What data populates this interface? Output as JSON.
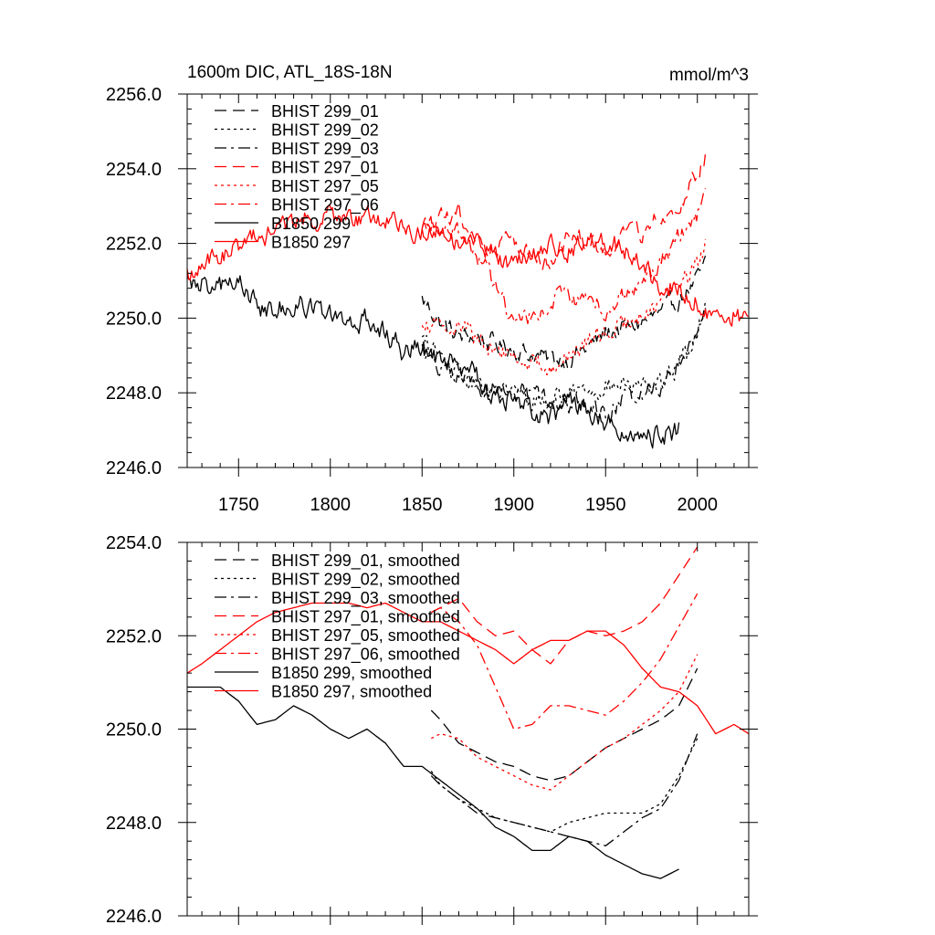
{
  "colors": {
    "black": "#000000",
    "red": "#ff0000"
  },
  "chart_data": [
    {
      "type": "line",
      "title": "1600m DIC, ATL_18S-18N",
      "units": "mmol/m^3",
      "xlabel": "",
      "ylabel": "",
      "xlim": [
        1722,
        2028
      ],
      "ylim": [
        2246.0,
        2256.0
      ],
      "xticks": [
        1750,
        1800,
        1850,
        1900,
        1950,
        2000
      ],
      "yticks": [
        "2246.0",
        "2248.0",
        "2250.0",
        "2252.0",
        "2254.0",
        "2256.0"
      ],
      "series": [
        {
          "name": "BHIST 299_01",
          "color": "#000000",
          "dash": "dash",
          "noise": 0.22,
          "x": [
            1850,
            1860,
            1870,
            1880,
            1890,
            1900,
            1910,
            1920,
            1930,
            1940,
            1950,
            1960,
            1970,
            1980,
            1990,
            2000,
            2005
          ],
          "y": [
            2250.5,
            2249.9,
            2249.5,
            2249.5,
            2249.3,
            2249.2,
            2249.0,
            2248.9,
            2248.9,
            2249.2,
            2249.6,
            2249.7,
            2249.9,
            2250.1,
            2250.5,
            2251.0,
            2251.5
          ]
        },
        {
          "name": "BHIST 299_02",
          "color": "#000000",
          "dash": "dot",
          "noise": 0.22,
          "x": [
            1850,
            1860,
            1870,
            1880,
            1890,
            1900,
            1910,
            1920,
            1930,
            1940,
            1950,
            1960,
            1970,
            1980,
            1990,
            2000,
            2005
          ],
          "y": [
            2249.4,
            2249.0,
            2248.4,
            2248.2,
            2248.0,
            2248.0,
            2247.8,
            2247.8,
            2248.0,
            2248.1,
            2248.2,
            2248.2,
            2248.1,
            2248.2,
            2248.9,
            2249.6,
            2250.3
          ]
        },
        {
          "name": "BHIST 299_03",
          "color": "#000000",
          "dash": "dashdot",
          "noise": 0.22,
          "x": [
            1850,
            1860,
            1870,
            1880,
            1890,
            1900,
            1910,
            1920,
            1930,
            1940,
            1950,
            1960,
            1970,
            1980,
            1990,
            2000,
            2005
          ],
          "y": [
            2249.2,
            2248.7,
            2248.4,
            2248.2,
            2248.1,
            2248.0,
            2247.9,
            2247.7,
            2247.7,
            2247.6,
            2247.5,
            2247.8,
            2248.0,
            2248.2,
            2248.8,
            2249.7,
            2250.4
          ]
        },
        {
          "name": "BHIST 297_01",
          "color": "#ff0000",
          "dash": "dash",
          "noise": 0.22,
          "x": [
            1850,
            1860,
            1870,
            1880,
            1890,
            1900,
            1910,
            1920,
            1930,
            1940,
            1950,
            1960,
            1970,
            1980,
            1990,
            2000,
            2005
          ],
          "y": [
            2252.3,
            2252.6,
            2252.8,
            2252.1,
            2251.9,
            2252.1,
            2251.8,
            2251.5,
            2252.1,
            2252.1,
            2251.9,
            2252.1,
            2252.3,
            2252.7,
            2253.1,
            2253.8,
            2254.5
          ]
        },
        {
          "name": "BHIST 297_05",
          "color": "#ff0000",
          "dash": "dot",
          "noise": 0.22,
          "x": [
            1850,
            1860,
            1870,
            1880,
            1890,
            1900,
            1910,
            1920,
            1930,
            1940,
            1950,
            1960,
            1970,
            1980,
            1990,
            2000,
            2005
          ],
          "y": [
            2249.7,
            2250.0,
            2249.8,
            2249.4,
            2249.2,
            2249.0,
            2248.8,
            2248.7,
            2249.0,
            2249.3,
            2249.6,
            2249.8,
            2250.1,
            2250.4,
            2250.8,
            2251.4,
            2252.1
          ]
        },
        {
          "name": "BHIST 297_06",
          "color": "#ff0000",
          "dash": "dashdot",
          "noise": 0.22,
          "x": [
            1850,
            1860,
            1870,
            1880,
            1890,
            1900,
            1910,
            1920,
            1930,
            1940,
            1950,
            1960,
            1970,
            1980,
            1990,
            2000,
            2005
          ],
          "y": [
            2252.3,
            2252.6,
            2252.3,
            2251.7,
            2250.9,
            2249.9,
            2250.1,
            2250.5,
            2250.6,
            2250.5,
            2250.3,
            2250.6,
            2250.9,
            2251.5,
            2252.1,
            2252.8,
            2253.2
          ]
        },
        {
          "name": "B1850 299",
          "color": "#000000",
          "dash": "solid",
          "noise": 0.26,
          "x": [
            1722,
            1730,
            1740,
            1750,
            1760,
            1770,
            1780,
            1790,
            1800,
            1810,
            1820,
            1830,
            1840,
            1850,
            1860,
            1870,
            1880,
            1890,
            1900,
            1910,
            1920,
            1930,
            1940,
            1950,
            1960,
            1970,
            1980,
            1990
          ],
          "y": [
            2251.0,
            2250.9,
            2250.9,
            2250.9,
            2250.3,
            2250.1,
            2250.5,
            2250.4,
            2250.1,
            2249.8,
            2250.0,
            2249.6,
            2249.1,
            2249.2,
            2248.9,
            2248.7,
            2248.4,
            2248.0,
            2247.8,
            2247.4,
            2247.4,
            2247.7,
            2247.6,
            2247.3,
            2247.1,
            2246.9,
            2246.8,
            2247.0
          ]
        },
        {
          "name": "B1850 297",
          "color": "#ff0000",
          "dash": "solid",
          "noise": 0.24,
          "x": [
            1722,
            1730,
            1740,
            1750,
            1760,
            1770,
            1780,
            1790,
            1800,
            1810,
            1820,
            1830,
            1840,
            1850,
            1860,
            1870,
            1880,
            1890,
            1900,
            1910,
            1920,
            1930,
            1940,
            1950,
            1960,
            1970,
            1980,
            1990,
            2000,
            2010,
            2020,
            2028
          ],
          "y": [
            2251.2,
            2251.4,
            2251.7,
            2251.9,
            2252.2,
            2252.4,
            2252.6,
            2252.7,
            2252.7,
            2252.7,
            2252.6,
            2252.7,
            2252.5,
            2252.3,
            2252.3,
            2252.1,
            2251.9,
            2251.7,
            2251.4,
            2251.7,
            2251.9,
            2251.8,
            2252.1,
            2252.1,
            2251.9,
            2251.3,
            2250.9,
            2250.8,
            2250.5,
            2250.0,
            2250.1,
            2249.9
          ]
        }
      ]
    },
    {
      "type": "line",
      "title": "",
      "xlabel": "",
      "ylabel": "",
      "xlim": [
        1722,
        2028
      ],
      "ylim": [
        2246.0,
        2254.0
      ],
      "xticks": [
        1750,
        1800,
        1850,
        1900,
        1950,
        2000
      ],
      "yticks": [
        "2246.0",
        "2248.0",
        "2250.0",
        "2252.0",
        "2254.0"
      ],
      "series": [
        {
          "name": "BHIST 299_01, smoothed",
          "color": "#000000",
          "dash": "dash",
          "noise": 0,
          "x": [
            1855,
            1860,
            1870,
            1880,
            1890,
            1900,
            1910,
            1920,
            1930,
            1940,
            1950,
            1960,
            1970,
            1980,
            1990,
            2000
          ],
          "y": [
            2250.4,
            2250.2,
            2249.7,
            2249.5,
            2249.3,
            2249.2,
            2249.0,
            2248.9,
            2249.0,
            2249.3,
            2249.6,
            2249.8,
            2250.0,
            2250.2,
            2250.5,
            2251.3
          ]
        },
        {
          "name": "BHIST 299_02, smoothed",
          "color": "#000000",
          "dash": "dot",
          "noise": 0,
          "x": [
            1855,
            1860,
            1870,
            1880,
            1890,
            1900,
            1910,
            1920,
            1930,
            1940,
            1950,
            1960,
            1970,
            1980,
            1990,
            2000
          ],
          "y": [
            2249.1,
            2248.8,
            2248.5,
            2248.3,
            2248.1,
            2248.0,
            2247.9,
            2247.8,
            2248.0,
            2248.1,
            2248.2,
            2248.2,
            2248.2,
            2248.4,
            2249.0,
            2249.8
          ]
        },
        {
          "name": "BHIST 299_03, smoothed",
          "color": "#000000",
          "dash": "dashdot",
          "noise": 0,
          "x": [
            1855,
            1860,
            1870,
            1880,
            1890,
            1900,
            1910,
            1920,
            1930,
            1940,
            1950,
            1960,
            1970,
            1980,
            1990,
            2000
          ],
          "y": [
            2249.0,
            2248.8,
            2248.5,
            2248.2,
            2248.1,
            2248.0,
            2247.9,
            2247.8,
            2247.7,
            2247.6,
            2247.5,
            2247.8,
            2248.1,
            2248.3,
            2248.9,
            2249.9
          ]
        },
        {
          "name": "BHIST 297_01, smoothed",
          "color": "#ff0000",
          "dash": "dash",
          "noise": 0,
          "x": [
            1855,
            1860,
            1870,
            1880,
            1890,
            1900,
            1910,
            1920,
            1930,
            1940,
            1950,
            1960,
            1970,
            1980,
            1990,
            2000
          ],
          "y": [
            2252.5,
            2252.6,
            2252.8,
            2252.3,
            2252.0,
            2252.1,
            2251.7,
            2251.4,
            2251.9,
            2252.1,
            2252.0,
            2252.1,
            2252.3,
            2252.7,
            2253.3,
            2253.9
          ]
        },
        {
          "name": "BHIST 297_05, smoothed",
          "color": "#ff0000",
          "dash": "dot",
          "noise": 0,
          "x": [
            1855,
            1860,
            1870,
            1880,
            1890,
            1900,
            1910,
            1920,
            1930,
            1940,
            1950,
            1960,
            1970,
            1980,
            1990,
            2000
          ],
          "y": [
            2249.8,
            2249.9,
            2249.8,
            2249.4,
            2249.2,
            2249.0,
            2248.8,
            2248.7,
            2249.0,
            2249.3,
            2249.6,
            2249.8,
            2250.1,
            2250.4,
            2250.8,
            2251.6
          ]
        },
        {
          "name": "BHIST 297_06, smoothed",
          "color": "#ff0000",
          "dash": "dashdot",
          "noise": 0,
          "x": [
            1855,
            1860,
            1870,
            1880,
            1890,
            1900,
            1910,
            1920,
            1930,
            1940,
            1950,
            1960,
            1970,
            1980,
            1990,
            2000
          ],
          "y": [
            2252.5,
            2252.6,
            2252.3,
            2251.8,
            2250.9,
            2250.0,
            2250.1,
            2250.5,
            2250.5,
            2250.4,
            2250.3,
            2250.6,
            2251.0,
            2251.5,
            2252.2,
            2252.9
          ]
        },
        {
          "name": "B1850 299, smoothed",
          "color": "#000000",
          "dash": "solid",
          "noise": 0,
          "x": [
            1722,
            1730,
            1740,
            1750,
            1760,
            1770,
            1780,
            1790,
            1800,
            1810,
            1820,
            1830,
            1840,
            1850,
            1860,
            1870,
            1880,
            1890,
            1900,
            1910,
            1920,
            1930,
            1940,
            1950,
            1960,
            1970,
            1980,
            1990
          ],
          "y": [
            2250.9,
            2250.9,
            2250.9,
            2250.6,
            2250.1,
            2250.2,
            2250.5,
            2250.3,
            2250.0,
            2249.8,
            2250.0,
            2249.7,
            2249.2,
            2249.2,
            2248.9,
            2248.6,
            2248.3,
            2247.9,
            2247.7,
            2247.4,
            2247.4,
            2247.7,
            2247.6,
            2247.3,
            2247.1,
            2246.9,
            2246.8,
            2247.0
          ]
        },
        {
          "name": "B1850 297, smoothed",
          "color": "#ff0000",
          "dash": "solid",
          "noise": 0,
          "x": [
            1722,
            1730,
            1740,
            1750,
            1760,
            1770,
            1780,
            1790,
            1800,
            1810,
            1820,
            1830,
            1840,
            1850,
            1860,
            1870,
            1880,
            1890,
            1900,
            1910,
            1920,
            1930,
            1940,
            1950,
            1960,
            1970,
            1980,
            1990,
            2000,
            2010,
            2020,
            2028
          ],
          "y": [
            2251.2,
            2251.4,
            2251.7,
            2252.0,
            2252.3,
            2252.5,
            2252.6,
            2252.7,
            2252.7,
            2252.7,
            2252.6,
            2252.7,
            2252.5,
            2252.3,
            2252.3,
            2252.1,
            2251.9,
            2251.7,
            2251.4,
            2251.7,
            2251.9,
            2251.9,
            2252.1,
            2252.1,
            2251.8,
            2251.3,
            2250.9,
            2250.8,
            2250.5,
            2249.9,
            2250.1,
            2249.9
          ]
        }
      ]
    }
  ]
}
